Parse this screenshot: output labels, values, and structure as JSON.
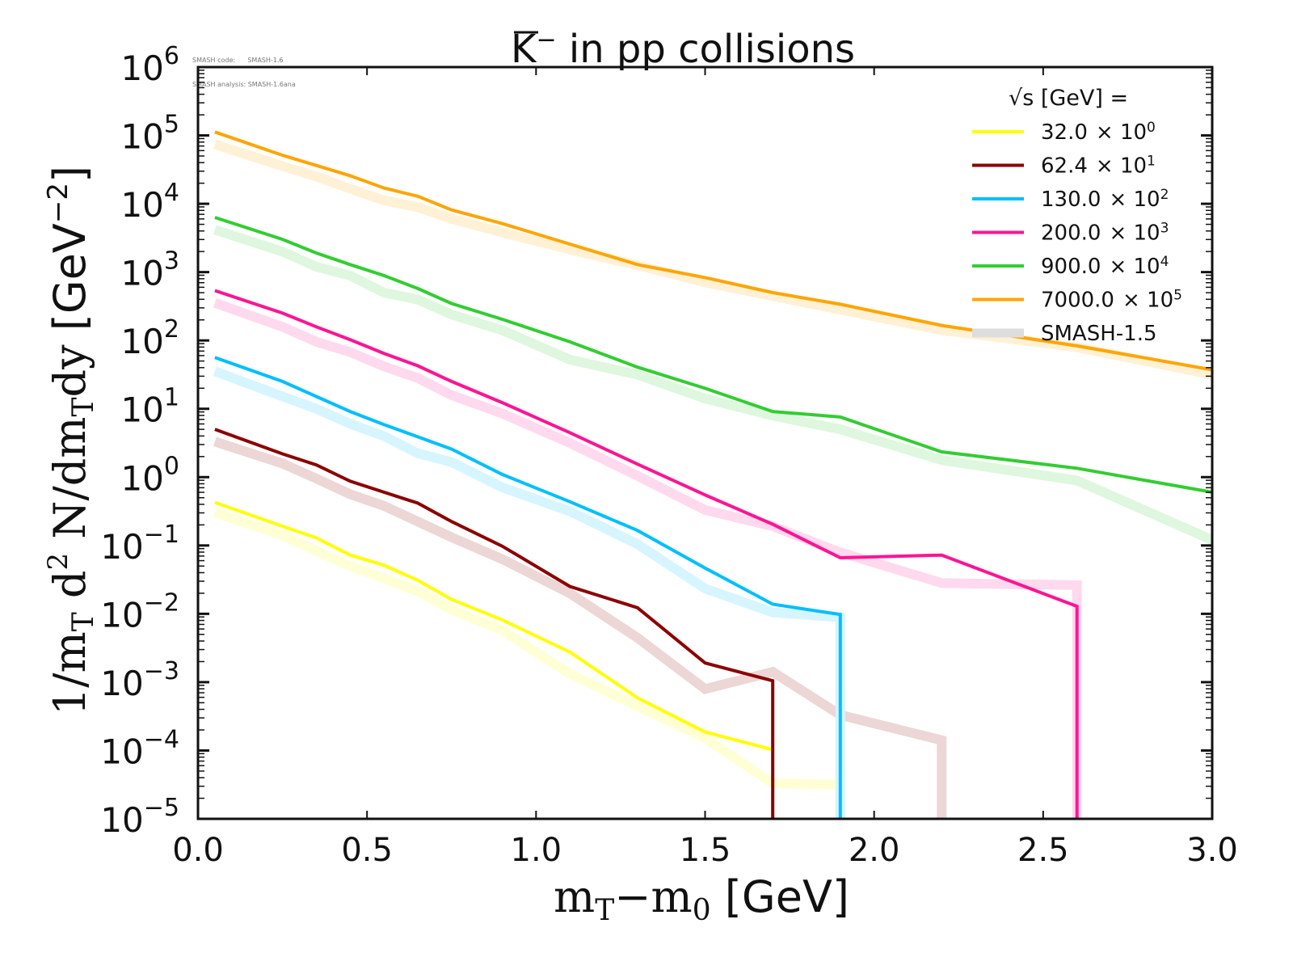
{
  "meta": {
    "code_label": "SMASH code:      SMASH-1.6",
    "analysis_label": "SMASH analysis: SMASH-1.6ana"
  },
  "chart_data": {
    "type": "line",
    "title": "K̅⁻ in pp collisions",
    "title_main": "K",
    "title_rest": " in pp collisions",
    "xlabel": "mT−m0 [GeV]",
    "ylabel": "1/mT d2 N/dmTdy [GeV−2]",
    "xlim": [
      0.0,
      3.0
    ],
    "ylim": [
      1e-05,
      1000000.0
    ],
    "yscale": "log",
    "xticks": [
      "0.0",
      "0.5",
      "1.0",
      "1.5",
      "2.0",
      "2.5",
      "3.0"
    ],
    "xtick_values": [
      0.0,
      0.5,
      1.0,
      1.5,
      2.0,
      2.5,
      3.0
    ],
    "ytick_exponents": [
      6,
      5,
      4,
      3,
      2,
      1,
      0,
      -1,
      -2,
      -3,
      -4,
      -5
    ],
    "grid": false,
    "legend": {
      "position": "top-right",
      "title": "√s  [GeV] =",
      "entries": [
        {
          "label": "32.0",
          "mult": "× 10",
          "exp": "0",
          "color": "#ffff00"
        },
        {
          "label": "62.4",
          "mult": "× 10",
          "exp": "1",
          "color": "#8b0000"
        },
        {
          "label": "130.0",
          "mult": "× 10",
          "exp": "2",
          "color": "#00bfff"
        },
        {
          "label": "200.0",
          "mult": "× 10",
          "exp": "3",
          "color": "#ff1493"
        },
        {
          "label": "900.0",
          "mult": "× 10",
          "exp": "4",
          "color": "#32cd32"
        },
        {
          "label": "7000.0",
          "mult": "× 10",
          "exp": "5",
          "color": "#ffa500"
        },
        {
          "label": "SMASH-1.5",
          "mult": "",
          "exp": "",
          "color": "#dddddd"
        }
      ]
    },
    "x": [
      0.05,
      0.25,
      0.35,
      0.45,
      0.55,
      0.65,
      0.75,
      0.9,
      1.1,
      1.3,
      1.5,
      1.7,
      1.9,
      2.2,
      2.6,
      3.0
    ],
    "series": [
      {
        "name": "32.0 x 10^0",
        "color": "#ffff00",
        "version": "SMASH-1.6",
        "log10_values": [
          -0.37,
          -0.72,
          -0.89,
          -1.14,
          -1.29,
          -1.51,
          -1.79,
          -2.09,
          -2.56,
          -3.23,
          -3.73,
          -3.99,
          null,
          null,
          null,
          null
        ]
      },
      {
        "name": "62.4 x 10^1",
        "color": "#8b0000",
        "version": "SMASH-1.6",
        "log10_values": [
          0.7,
          0.34,
          0.18,
          -0.06,
          -0.22,
          -0.38,
          -0.65,
          -1.01,
          -1.6,
          -1.91,
          -2.72,
          -2.98,
          null,
          null,
          null,
          null
        ],
        "drop_after_x": 1.7
      },
      {
        "name": "130.0 x 10^2",
        "color": "#00bfff",
        "version": "SMASH-1.6",
        "log10_values": [
          1.75,
          1.4,
          1.18,
          0.96,
          0.77,
          0.59,
          0.41,
          0.04,
          -0.36,
          -0.78,
          -1.33,
          -1.86,
          -2.01,
          null,
          null,
          null
        ],
        "drop_after_x": 1.9
      },
      {
        "name": "200.0 x 10^3",
        "color": "#ff1493",
        "version": "SMASH-1.6",
        "log10_values": [
          2.73,
          2.4,
          2.2,
          2.01,
          1.81,
          1.63,
          1.4,
          1.09,
          0.65,
          0.19,
          -0.26,
          -0.69,
          -1.18,
          -1.14,
          -1.89,
          null
        ],
        "drop_after_x": 2.6
      },
      {
        "name": "900.0 x 10^4",
        "color": "#32cd32",
        "version": "SMASH-1.6",
        "log10_values": [
          3.8,
          3.48,
          3.28,
          3.11,
          2.95,
          2.76,
          2.54,
          2.31,
          1.98,
          1.61,
          1.3,
          0.96,
          0.88,
          0.37,
          0.13,
          -0.22
        ]
      },
      {
        "name": "7000.0 x 10^5",
        "color": "#ffa500",
        "version": "SMASH-1.6",
        "log10_values": [
          5.05,
          4.71,
          4.56,
          4.41,
          4.23,
          4.11,
          3.91,
          3.71,
          3.41,
          3.11,
          2.92,
          2.7,
          2.53,
          2.22,
          1.92,
          1.57
        ]
      },
      {
        "name": "32.0 x 10^0 (SMASH-1.5)",
        "color": "#ffff00",
        "version": "SMASH-1.5",
        "log10_values": [
          -0.52,
          -0.85,
          -1.08,
          -1.3,
          -1.48,
          -1.67,
          -1.94,
          -2.24,
          -2.88,
          -3.35,
          -3.82,
          -4.48,
          -4.5,
          null,
          null,
          null
        ],
        "drop_after_x": 1.9
      },
      {
        "name": "62.4 x 10^1 (SMASH-1.5)",
        "color": "#8b0000",
        "version": "SMASH-1.5",
        "log10_values": [
          0.52,
          0.2,
          -0.02,
          -0.25,
          -0.42,
          -0.65,
          -0.88,
          -1.2,
          -1.7,
          -2.35,
          -3.1,
          -2.85,
          -3.48,
          -3.85,
          null,
          null
        ],
        "drop_after_x": 2.2
      },
      {
        "name": "130.0 x 10^2 (SMASH-1.5)",
        "color": "#00bfff",
        "version": "SMASH-1.5",
        "log10_values": [
          1.55,
          1.18,
          1.0,
          0.78,
          0.6,
          0.35,
          0.22,
          -0.15,
          -0.5,
          -0.98,
          -1.63,
          -1.98,
          -2.05,
          null,
          null,
          null
        ],
        "drop_after_x": 1.9
      },
      {
        "name": "200.0 x 10^3 (SMASH-1.5)",
        "color": "#ff1493",
        "version": "SMASH-1.5",
        "log10_values": [
          2.55,
          2.2,
          1.98,
          1.83,
          1.62,
          1.45,
          1.2,
          0.93,
          0.5,
          0.02,
          -0.48,
          -0.72,
          -1.1,
          -1.55,
          -1.58,
          null
        ],
        "drop_after_x": 2.6
      },
      {
        "name": "900.0 x 10^4 (SMASH-1.5)",
        "color": "#32cd32",
        "version": "SMASH-1.5",
        "log10_values": [
          3.62,
          3.3,
          3.08,
          2.95,
          2.7,
          2.6,
          2.38,
          2.15,
          1.72,
          1.5,
          1.15,
          0.9,
          0.7,
          0.25,
          -0.05,
          -0.92
        ]
      },
      {
        "name": "7000.0 x 10^5 (SMASH-1.5)",
        "color": "#ffa500",
        "version": "SMASH-1.5",
        "log10_values": [
          4.87,
          4.55,
          4.4,
          4.22,
          4.05,
          3.95,
          3.78,
          3.58,
          3.33,
          3.1,
          2.85,
          2.65,
          2.45,
          2.15,
          1.9,
          1.5
        ]
      }
    ]
  }
}
